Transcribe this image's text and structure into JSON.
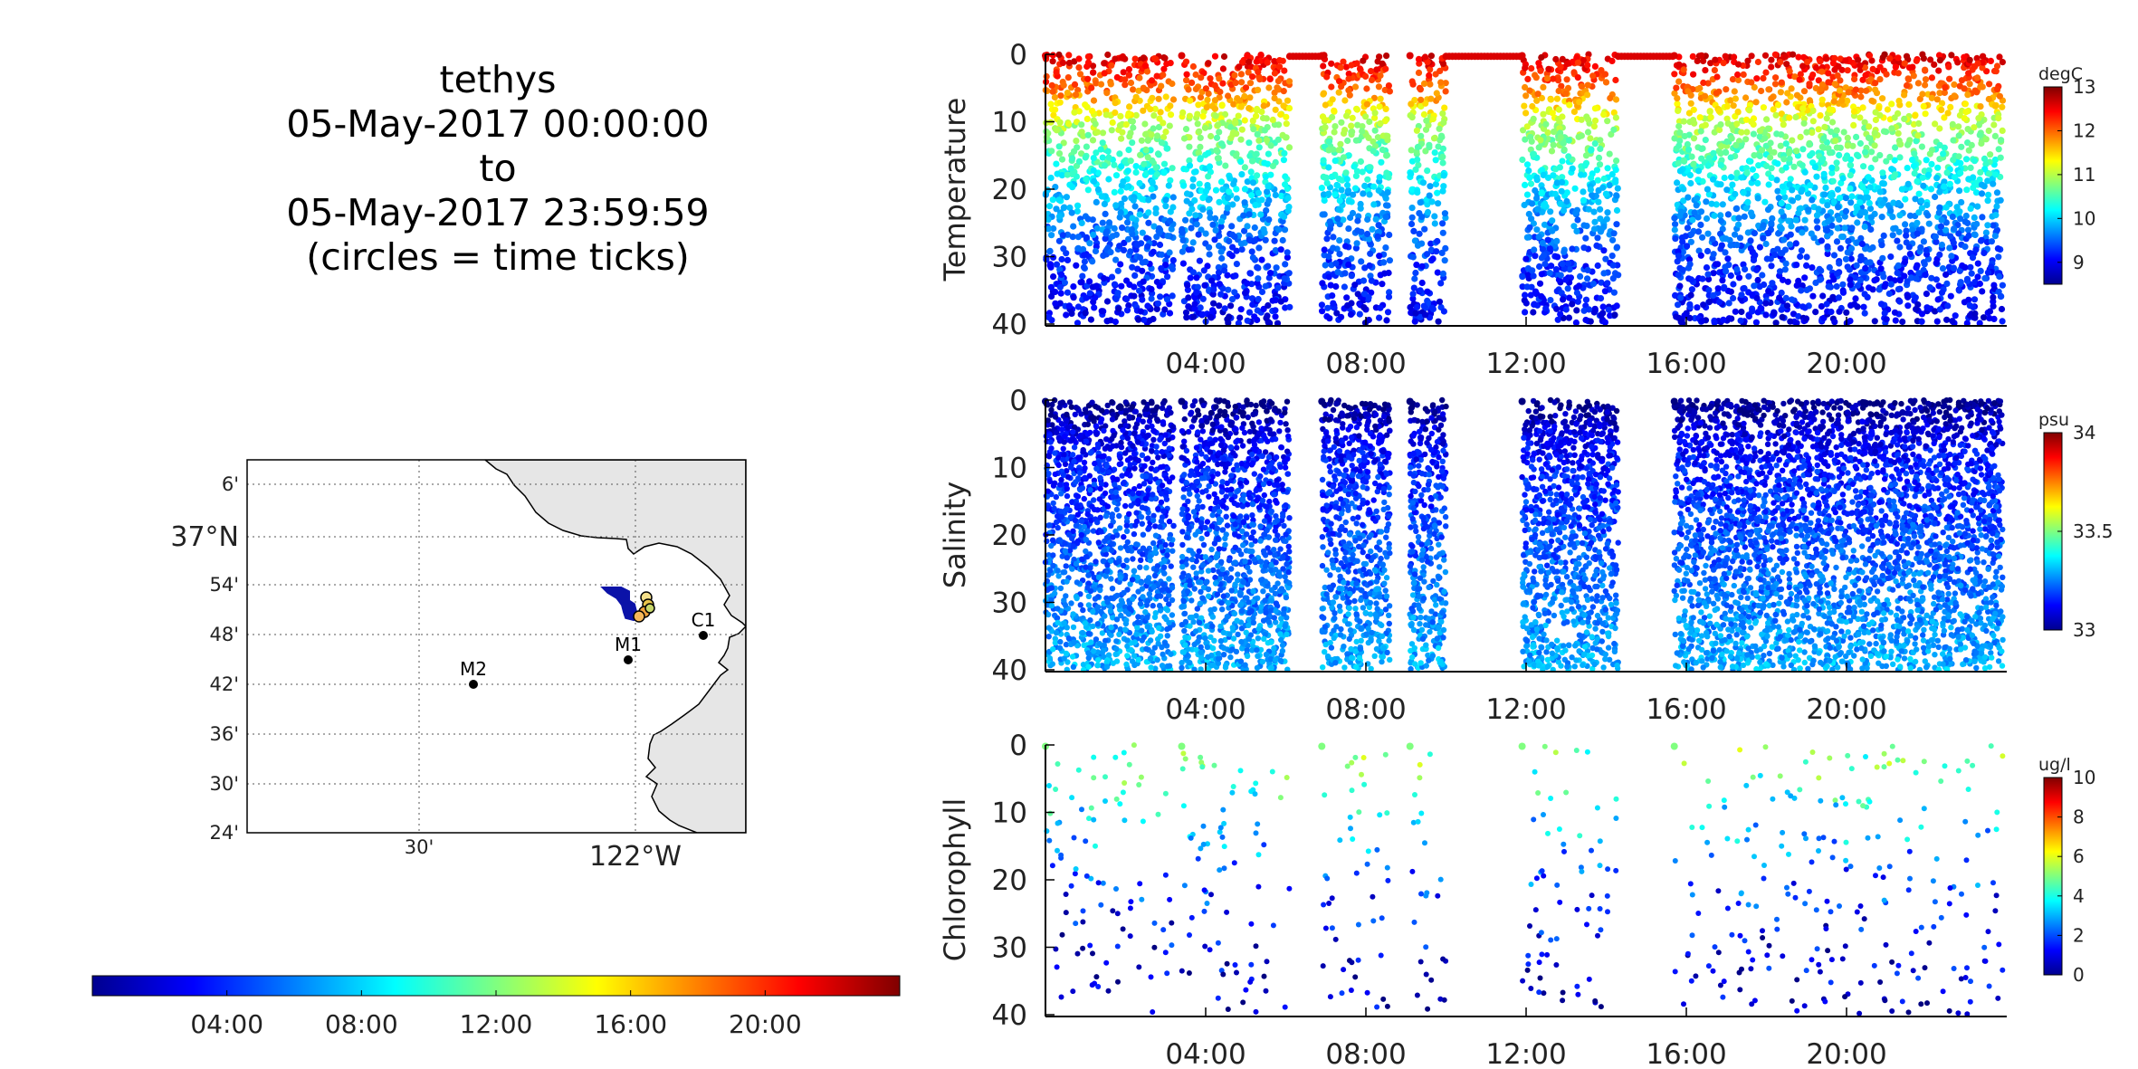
{
  "title_block": {
    "vehicle": "tethys",
    "start": "05-May-2017 00:00:00",
    "to": "to",
    "end": "05-May-2017 23:59:59",
    "note": "(circles = time ticks)"
  },
  "chart_data": [
    {
      "type": "scatter",
      "name": "temperature-section",
      "ylabel": "Temperature",
      "y_reversed": true,
      "ylim": [
        0,
        40
      ],
      "yticks": [
        0,
        10,
        20,
        30,
        40
      ],
      "xlim_hours": [
        0,
        24
      ],
      "xtick_labels": [
        "04:00",
        "08:00",
        "12:00",
        "16:00",
        "20:00"
      ],
      "colorbar": {
        "unit": "degC",
        "range": [
          8.5,
          13
        ],
        "ticks": [
          9,
          10,
          11,
          12,
          13
        ],
        "colormap": "jet"
      },
      "segments_hours": [
        [
          0,
          3.2
        ],
        [
          3.4,
          6.1
        ],
        [
          6.9,
          8.6
        ],
        [
          9.1,
          10.0
        ],
        [
          11.9,
          14.3
        ],
        [
          15.7,
          23.9
        ]
      ],
      "surface_only_hours": [
        [
          6.1,
          6.9
        ],
        [
          10.0,
          11.9
        ],
        [
          14.3,
          15.7
        ]
      ],
      "profile_example": {
        "depth": [
          0,
          5,
          10,
          20,
          30,
          40
        ],
        "value": [
          12.6,
          12.0,
          11.0,
          10.0,
          9.3,
          9.0
        ]
      }
    },
    {
      "type": "scatter",
      "name": "salinity-section",
      "ylabel": "Salinity",
      "y_reversed": true,
      "ylim": [
        0,
        40
      ],
      "yticks": [
        0,
        10,
        20,
        30,
        40
      ],
      "xlim_hours": [
        0,
        24
      ],
      "xtick_labels": [
        "04:00",
        "08:00",
        "12:00",
        "16:00",
        "20:00"
      ],
      "colorbar": {
        "unit": "psu",
        "range": [
          33,
          34
        ],
        "ticks": [
          33,
          33.5,
          34
        ],
        "colormap": "jet"
      },
      "segments_hours": [
        [
          0,
          3.2
        ],
        [
          3.4,
          6.1
        ],
        [
          6.9,
          8.6
        ],
        [
          9.1,
          10.0
        ],
        [
          11.9,
          14.3
        ],
        [
          15.7,
          23.9
        ]
      ],
      "profile_example": {
        "depth": [
          0,
          5,
          10,
          20,
          30,
          40
        ],
        "value": [
          33.0,
          33.1,
          33.15,
          33.2,
          33.25,
          33.3
        ]
      }
    },
    {
      "type": "scatter",
      "name": "chlorophyll-section",
      "ylabel": "Chlorophyll",
      "y_reversed": true,
      "ylim": [
        0,
        40
      ],
      "yticks": [
        0,
        10,
        20,
        30,
        40
      ],
      "xlim_hours": [
        0,
        24
      ],
      "xtick_labels": [
        "04:00",
        "08:00",
        "12:00",
        "16:00",
        "20:00"
      ],
      "colorbar": {
        "unit": "ug/l",
        "range": [
          0,
          10
        ],
        "ticks": [
          0,
          2,
          4,
          6,
          8,
          10
        ],
        "colormap": "jet"
      },
      "segments_hours": [
        [
          0,
          3.2
        ],
        [
          3.4,
          6.1
        ],
        [
          6.9,
          8.6
        ],
        [
          9.1,
          10.0
        ],
        [
          11.9,
          14.3
        ],
        [
          15.7,
          23.9
        ]
      ],
      "profile_example": {
        "depth": [
          0,
          5,
          10,
          20,
          30,
          40
        ],
        "value": [
          5,
          4.5,
          3.5,
          2,
          1,
          0.5
        ]
      }
    },
    {
      "type": "map",
      "name": "track-map",
      "lat_labels": [
        "6'",
        "37°N",
        "54'",
        "48'",
        "42'",
        "36'",
        "30'",
        "24'"
      ],
      "lon_labels": [
        "30'",
        "122°W"
      ],
      "stations": [
        {
          "name": "M2",
          "lon": -122.38,
          "lat": 36.7
        },
        {
          "name": "M1",
          "lon": -122.02,
          "lat": 36.75
        },
        {
          "name": "C1",
          "lon": -121.85,
          "lat": 36.8
        }
      ]
    },
    {
      "type": "colorbar",
      "name": "time-colorbar",
      "xtick_labels": [
        "04:00",
        "08:00",
        "12:00",
        "16:00",
        "20:00"
      ],
      "colormap": "jet"
    }
  ]
}
